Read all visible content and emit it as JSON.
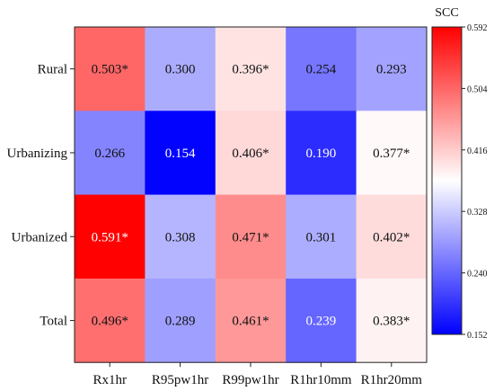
{
  "chart_data": {
    "type": "heatmap",
    "rows": [
      "Rural",
      "Urbanizing",
      "Urbanized",
      "Total"
    ],
    "columns": [
      "Rx1hr",
      "R95pw1hr",
      "R99pw1hr",
      "R1hr10mm",
      "R1hr20mm"
    ],
    "values": [
      [
        0.503,
        0.3,
        0.396,
        0.254,
        0.293
      ],
      [
        0.266,
        0.154,
        0.406,
        0.19,
        0.377
      ],
      [
        0.591,
        0.308,
        0.471,
        0.301,
        0.402
      ],
      [
        0.496,
        0.289,
        0.461,
        0.239,
        0.383
      ]
    ],
    "labels": [
      [
        "0.503*",
        "0.300",
        "0.396*",
        "0.254",
        "0.293"
      ],
      [
        "0.266",
        "0.154",
        "0.406*",
        "0.190",
        "0.377*"
      ],
      [
        "0.591*",
        "0.308",
        "0.471*",
        "0.301",
        "0.402*"
      ],
      [
        "0.496*",
        "0.289",
        "0.461*",
        "0.239",
        "0.383*"
      ]
    ],
    "colorbar": {
      "title": "SCC",
      "min": 0.152,
      "max": 0.592,
      "ticks": [
        0.592,
        0.504,
        0.416,
        0.328,
        0.24,
        0.152
      ],
      "tick_labels": [
        "0.592",
        "0.504",
        "0.416",
        "0.328",
        "0.240",
        "0.152"
      ],
      "colors": {
        "low": "#0000ff",
        "mid": "#ffffff",
        "high": "#ff0000"
      }
    }
  }
}
